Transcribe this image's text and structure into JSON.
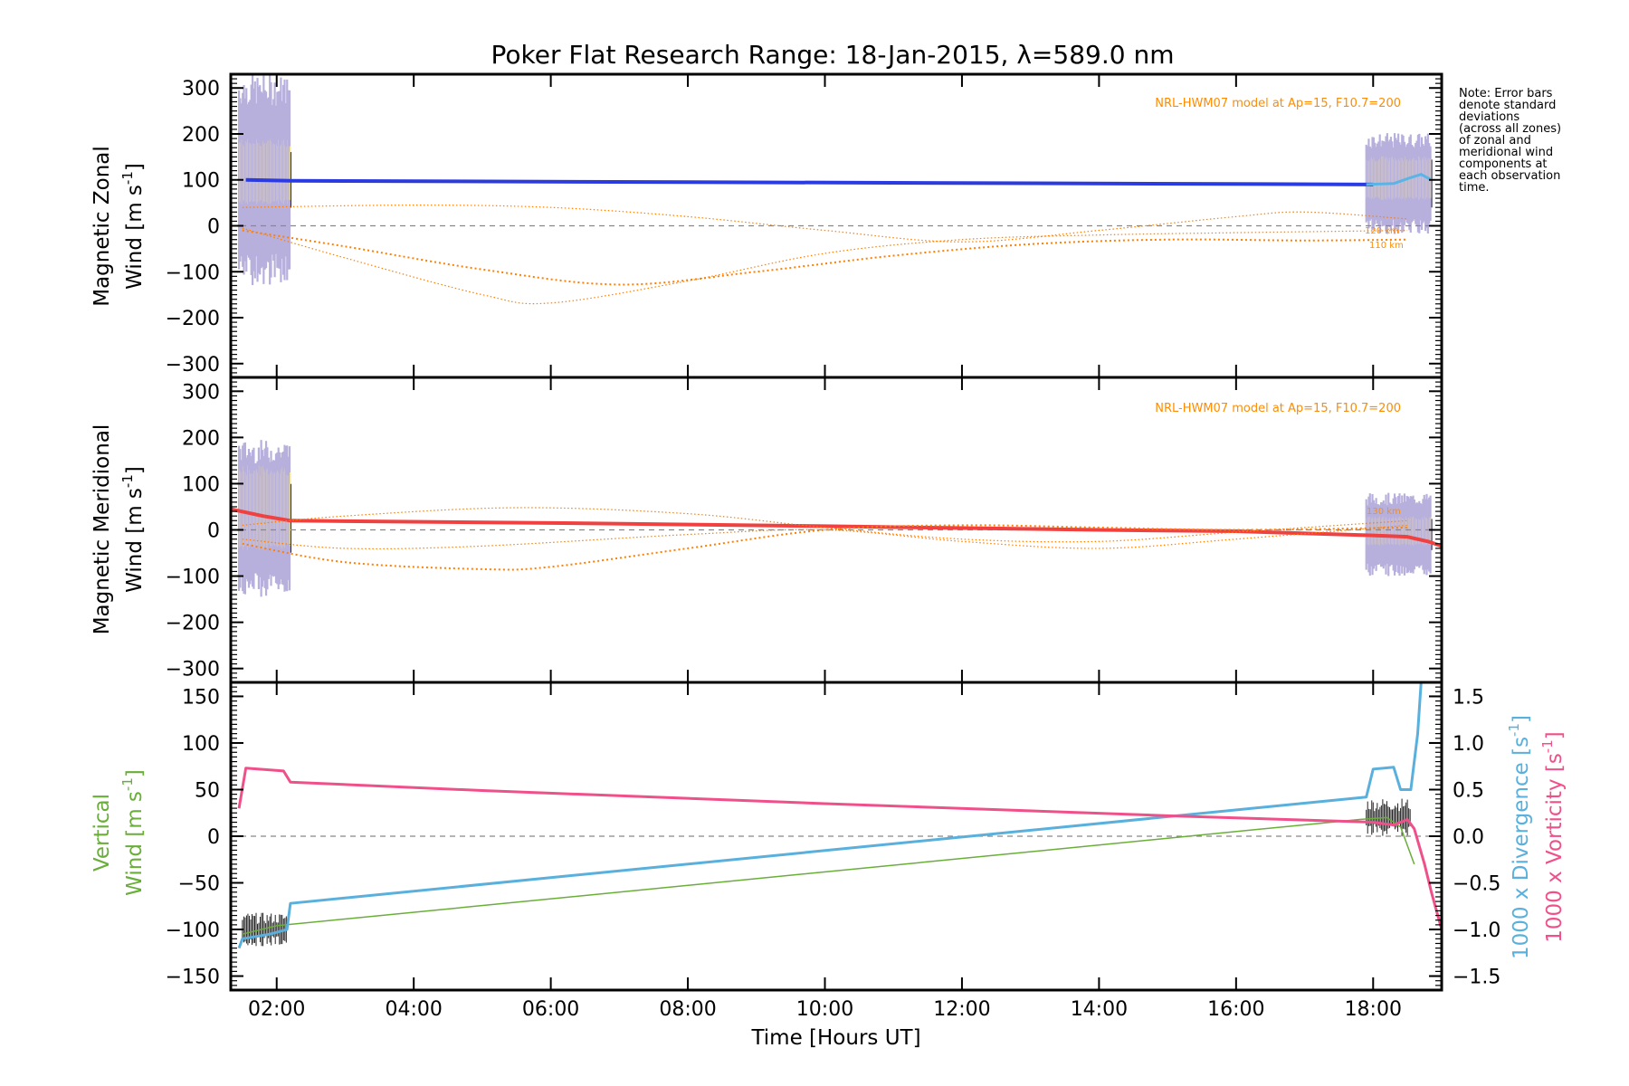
{
  "chart_data": [
    {
      "panel": "zonal",
      "type": "line",
      "title": "Poker Flat Research Range: 18-Jan-2015, λ=589.0 nm",
      "ylabel_line1": "Magnetic Zonal",
      "ylabel_line2": "Wind [m s",
      "ylabel_sup": "-1",
      "ylabel_close": "]",
      "xlim": [
        1.33,
        19.0
      ],
      "ylim": [
        -330,
        330
      ],
      "yticks": [
        -300,
        -200,
        -100,
        0,
        100,
        200,
        300
      ],
      "model_note": "NRL-HWM07 model at Ap=15, F10.7=200",
      "altitude_labels": [
        "120 km",
        "110 km"
      ],
      "series": [
        {
          "name": "mean zonal wind",
          "color": "#2b3be0",
          "width": 4,
          "x": [
            1.55,
            2.2,
            18.0
          ],
          "y": [
            100,
            98,
            90
          ]
        },
        {
          "name": "zonal wind 18-19h",
          "color": "#5ab4e6",
          "width": 3,
          "x": [
            17.9,
            18.3,
            18.55,
            18.7,
            18.85
          ],
          "y": [
            90,
            92,
            105,
            112,
            100
          ]
        },
        {
          "name": "HWM07 zonal 110 km",
          "color": "#ff7f00",
          "dotted": true,
          "x": [
            1.5,
            3.0,
            5.0,
            7.0,
            9.0,
            11.0,
            13.0,
            15.0,
            17.0,
            18.5
          ],
          "y": [
            -10,
            -45,
            -95,
            -128,
            -100,
            -65,
            -40,
            -30,
            -32,
            -30
          ]
        },
        {
          "name": "HWM07 zonal 120 km",
          "color": "#ff7f00",
          "dotted": true,
          "thin": true,
          "x": [
            1.5,
            3.0,
            5.0,
            6.0,
            8.0,
            10.0,
            12.0,
            14.0,
            16.0,
            18.5
          ],
          "y": [
            -5,
            -70,
            -150,
            -168,
            -120,
            -60,
            -30,
            -20,
            -15,
            -10
          ]
        },
        {
          "name": "HWM07 zonal 130 km",
          "color": "#ff7f00",
          "dotted": true,
          "thin": true,
          "x": [
            1.5,
            4.0,
            6.0,
            8.0,
            10.0,
            12.0,
            14.0,
            16.0,
            17.0,
            18.5
          ],
          "y": [
            40,
            45,
            40,
            20,
            -10,
            -35,
            -10,
            20,
            30,
            15
          ]
        }
      ]
    },
    {
      "panel": "meridional",
      "type": "line",
      "ylabel_line1": "Magnetic Meridional",
      "ylabel_line2": "Wind [m s",
      "ylabel_sup": "-1",
      "ylabel_close": "]",
      "xlim": [
        1.33,
        19.0
      ],
      "ylim": [
        -330,
        330
      ],
      "yticks": [
        -300,
        -200,
        -100,
        0,
        100,
        200,
        300
      ],
      "model_note": "NRL-HWM07 model at Ap=15, F10.7=200",
      "altitude_labels": [
        "130 km"
      ],
      "series": [
        {
          "name": "mean meridional wind",
          "color": "#f04040",
          "width": 4,
          "x": [
            1.33,
            1.8,
            2.2,
            6.0,
            10.0,
            14.0,
            16.0,
            18.0,
            18.5,
            18.8,
            19.0
          ],
          "y": [
            45,
            30,
            20,
            15,
            8,
            0,
            -3,
            -12,
            -15,
            -25,
            -35
          ]
        },
        {
          "name": "HWM07 meridional a",
          "color": "#ff7f00",
          "dotted": true,
          "x": [
            1.5,
            3.0,
            5.0,
            6.0,
            8.0,
            10.0,
            12.0,
            14.0,
            16.0,
            18.5
          ],
          "y": [
            -30,
            -70,
            -85,
            -80,
            -40,
            0,
            10,
            5,
            0,
            5
          ]
        },
        {
          "name": "HWM07 meridional b",
          "color": "#ff7f00",
          "dotted": true,
          "thin": true,
          "x": [
            1.5,
            3.0,
            5.5,
            8.0,
            10.0,
            12.0,
            14.0,
            16.0,
            18.5
          ],
          "y": [
            10,
            30,
            48,
            35,
            5,
            -20,
            -25,
            -5,
            20
          ]
        },
        {
          "name": "HWM07 meridional c",
          "color": "#ff7f00",
          "dotted": true,
          "thin": true,
          "x": [
            1.5,
            3.0,
            5.0,
            8.0,
            10.0,
            12.0,
            14.0,
            16.0,
            18.5
          ],
          "y": [
            -20,
            -40,
            -35,
            -10,
            0,
            -25,
            -40,
            -20,
            10
          ]
        }
      ]
    },
    {
      "panel": "vertical",
      "type": "line",
      "xlabel": "Time [Hours UT]",
      "xticks": [
        "02:00",
        "04:00",
        "06:00",
        "08:00",
        "10:00",
        "12:00",
        "14:00",
        "16:00",
        "18:00"
      ],
      "xtick_values": [
        2,
        4,
        6,
        8,
        10,
        12,
        14,
        16,
        18
      ],
      "ylabel_line1": "Vertical",
      "ylabel_line2": "Wind [m s",
      "ylabel_sup": "-1",
      "ylabel_close": "]",
      "ylabel_color": "#6aae3a",
      "xlim": [
        1.33,
        19.0
      ],
      "ylim": [
        -165,
        165
      ],
      "yticks": [
        -150,
        -100,
        -50,
        0,
        50,
        100,
        150
      ],
      "y2lim": [
        -1.65,
        1.65
      ],
      "y2ticks": [
        -1.5,
        -1.0,
        -0.5,
        0.0,
        0.5,
        1.0,
        1.5
      ],
      "y2tick_labels": [
        "−1.5",
        "−1.0",
        "−0.5",
        "0.0",
        "0.5",
        "1.0",
        "1.5"
      ],
      "y2label_div": "1000 x Divergence [s",
      "y2label_div_color": "#5ab0dc",
      "y2label_vort": "1000 x Vorticity [s",
      "y2label_vort_color": "#f0508a",
      "y2label_sup": "-1",
      "y2label_close": "]",
      "series": [
        {
          "name": "vertical wind",
          "axis": "left",
          "color": "#6aae3a",
          "width": 1.5,
          "x": [
            1.5,
            2.0,
            17.8,
            18.2,
            18.4,
            18.5,
            18.6
          ],
          "y": [
            -105,
            -96,
            18,
            20,
            10,
            -10,
            -30
          ]
        },
        {
          "name": "1000 x Divergence",
          "axis": "right",
          "color": "#5ab0dc",
          "width": 3,
          "x": [
            1.45,
            1.5,
            1.9,
            2.15,
            2.2,
            17.9,
            18.0,
            18.3,
            18.4,
            18.55,
            18.6,
            18.65,
            18.7
          ],
          "y": [
            -1.2,
            -1.1,
            -1.05,
            -1.0,
            -0.72,
            0.42,
            0.72,
            0.74,
            0.5,
            0.5,
            0.8,
            1.1,
            1.65
          ]
        },
        {
          "name": "1000 x Vorticity",
          "axis": "right",
          "color": "#f0508a",
          "width": 3,
          "x": [
            1.45,
            1.55,
            2.1,
            2.2,
            5.0,
            10.0,
            15.0,
            18.0,
            18.3,
            18.5,
            18.6,
            18.75,
            18.85,
            19.0
          ],
          "y": [
            0.3,
            0.73,
            0.7,
            0.58,
            0.49,
            0.35,
            0.22,
            0.15,
            0.12,
            0.18,
            0.08,
            -0.3,
            -0.6,
            -1.0
          ]
        }
      ]
    }
  ],
  "note": {
    "lines": [
      "Note: Error bars",
      "denote standard",
      "deviations",
      "(across all zones)",
      "of zonal and",
      "meridional wind",
      "components at",
      "each observation",
      "time."
    ]
  },
  "colors": {
    "errorbar_lavender": "#b8b0dc",
    "errorbar_yellow": "#f5e6a0",
    "errorbar_dark": "#1a1a3a",
    "zero_line": "#888888"
  }
}
